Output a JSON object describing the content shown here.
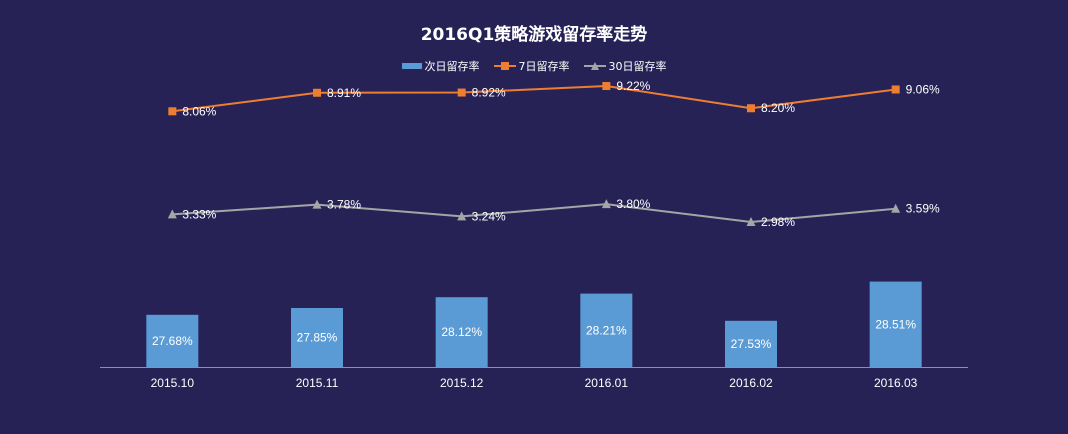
{
  "chart_data": {
    "type": "bar",
    "title": "2016Q1策略游戏留存率走势",
    "categories": [
      "2015.10",
      "2015.11",
      "2015.12",
      "2016.01",
      "2016.02",
      "2016.03"
    ],
    "series": [
      {
        "name": "次日留存率",
        "kind": "bar",
        "color": "#5b9bd5",
        "values": [
          27.68,
          27.85,
          28.12,
          28.21,
          27.53,
          28.51
        ],
        "labels": [
          "27.68%",
          "27.85%",
          "28.12%",
          "28.21%",
          "27.53%",
          "28.51%"
        ]
      },
      {
        "name": "7日留存率",
        "kind": "line",
        "marker": "square",
        "color": "#ed7d31",
        "values": [
          8.06,
          8.91,
          8.92,
          9.22,
          8.2,
          9.06
        ],
        "labels": [
          "8.06%",
          "8.91%",
          "8.92%",
          "9.22%",
          "8.20%",
          "9.06%"
        ]
      },
      {
        "name": "30日留存率",
        "kind": "line",
        "marker": "triangle",
        "color": "#a5a5a5",
        "values": [
          3.33,
          3.78,
          3.24,
          3.8,
          2.98,
          3.59
        ],
        "labels": [
          "3.33%",
          "3.78%",
          "3.24%",
          "3.80%",
          "2.98%",
          "3.59%"
        ]
      }
    ],
    "legend_position": "top",
    "grid": false,
    "background_color": "#272256"
  }
}
